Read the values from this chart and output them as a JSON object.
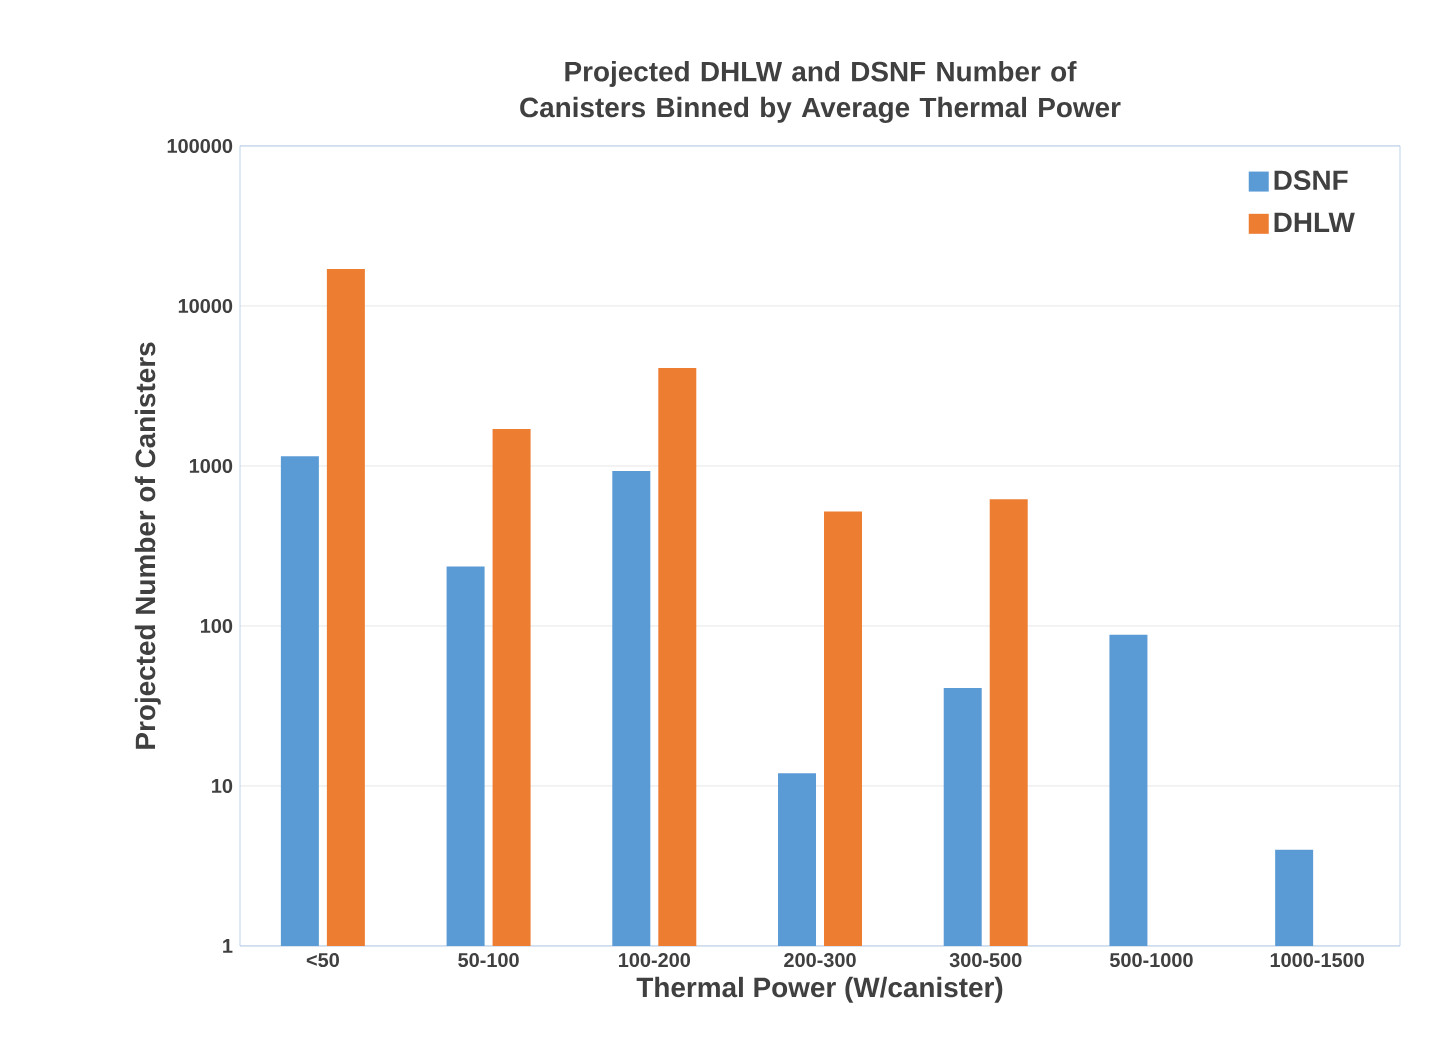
{
  "chart_data": {
    "type": "bar",
    "title": "Projected DHLW and DSNF Number of Canisters Binned by Average Thermal Power",
    "xlabel": "Thermal Power (W/canister)",
    "ylabel": "Projected Number of Canisters",
    "categories": [
      "<50",
      "50-100",
      "100-200",
      "200-300",
      "300-500",
      "500-1000",
      "1000-1500"
    ],
    "series": [
      {
        "name": "DSNF",
        "color": "#5b9bd5",
        "values": [
          1150,
          235,
          930,
          12,
          41,
          88,
          4
        ]
      },
      {
        "name": "DHLW",
        "color": "#ed7d31",
        "values": [
          17000,
          1700,
          4100,
          520,
          620,
          null,
          null
        ]
      }
    ],
    "log": "y",
    "ylim": [
      1,
      100000
    ],
    "yticks": [
      1,
      10,
      100,
      1000,
      10000,
      100000
    ],
    "grid": "y",
    "legend": "top right"
  }
}
